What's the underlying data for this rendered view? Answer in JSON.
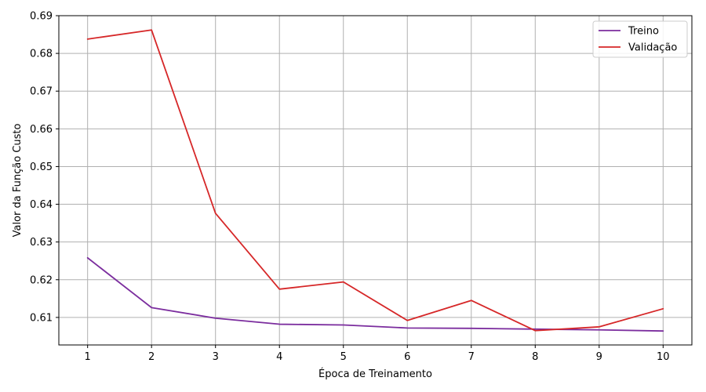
{
  "chart_data": {
    "type": "line",
    "title": "",
    "xlabel": "Época de Treinamento",
    "ylabel": "Valor da Função Custo",
    "x": [
      1,
      2,
      3,
      4,
      5,
      6,
      7,
      8,
      9,
      10
    ],
    "xticks": [
      "1",
      "2",
      "3",
      "4",
      "5",
      "6",
      "7",
      "8",
      "9",
      "10"
    ],
    "xlim": [
      0.55,
      10.45
    ],
    "ylim": [
      0.6027,
      0.69
    ],
    "yticks": [
      0.61,
      0.62,
      0.63,
      0.64,
      0.65,
      0.66,
      0.67,
      0.68,
      0.69
    ],
    "ytick_labels": [
      "0.61",
      "0.62",
      "0.63",
      "0.64",
      "0.65",
      "0.66",
      "0.67",
      "0.68",
      "0.69"
    ],
    "grid": true,
    "legend_position": "top-right",
    "series": [
      {
        "name": "Treino",
        "color": "#7b2d9e",
        "values": [
          0.6258,
          0.6126,
          0.6098,
          0.6082,
          0.608,
          0.6072,
          0.6071,
          0.6069,
          0.6067,
          0.6064
        ]
      },
      {
        "name": "Validação",
        "color": "#d62728",
        "values": [
          0.6838,
          0.6862,
          0.6376,
          0.6175,
          0.6194,
          0.6092,
          0.6145,
          0.6065,
          0.6075,
          0.6123
        ]
      }
    ]
  }
}
